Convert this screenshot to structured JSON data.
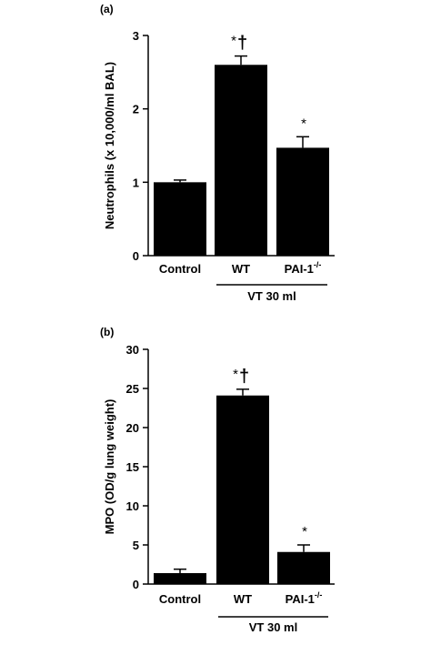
{
  "chart_data": [
    {
      "type": "bar",
      "panel_label": "(a)",
      "ylabel": "Neutrophils (x 10,000/ml BAL)",
      "ylim": [
        0,
        3
      ],
      "yticks": [
        "0",
        "1",
        "2",
        "3"
      ],
      "categories": [
        "Control",
        "WT",
        "PAI-1"
      ],
      "category_superscripts": [
        "",
        "",
        "-/-"
      ],
      "values": [
        1.0,
        2.6,
        1.47
      ],
      "errors": [
        0.03,
        0.12,
        0.15
      ],
      "annotations": [
        {
          "category": "WT",
          "star": "*",
          "dagger": "†"
        },
        {
          "category": "PAI-1",
          "star": "*",
          "dagger": ""
        }
      ],
      "group_label": "VT 30 ml",
      "group_categories": [
        "WT",
        "PAI-1"
      ],
      "bar_color": "#000000"
    },
    {
      "type": "bar",
      "panel_label": "(b)",
      "ylabel": "MPO (OD/g lung weight)",
      "ylim": [
        0,
        30
      ],
      "yticks": [
        "0",
        "5",
        "10",
        "15",
        "20",
        "25",
        "30"
      ],
      "categories": [
        "Control",
        "WT",
        "PAI-1"
      ],
      "category_superscripts": [
        "",
        "",
        "-/-"
      ],
      "values": [
        1.4,
        24.1,
        4.1
      ],
      "errors": [
        0.5,
        0.8,
        0.9
      ],
      "annotations": [
        {
          "category": "WT",
          "star": "*",
          "dagger": "†"
        },
        {
          "category": "PAI-1",
          "star": "*",
          "dagger": ""
        }
      ],
      "group_label": "VT 30 ml",
      "group_categories": [
        "WT",
        "PAI-1"
      ],
      "bar_color": "#000000"
    }
  ]
}
